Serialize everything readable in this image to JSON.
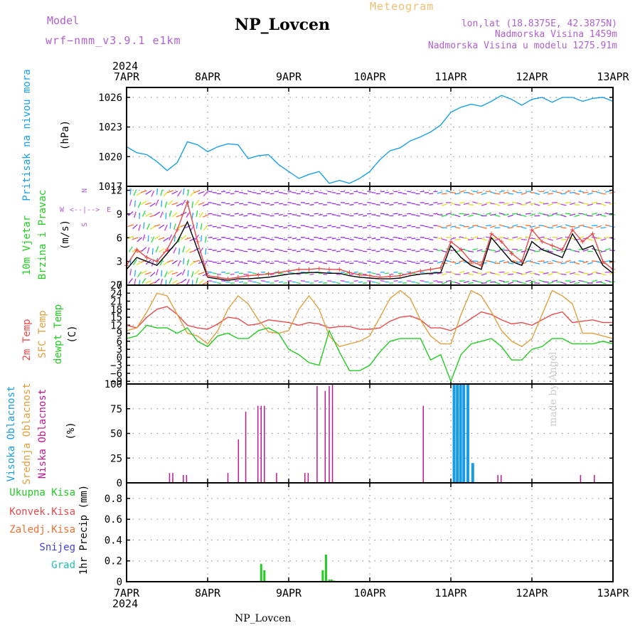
{
  "header": {
    "model_label": "Model",
    "model_value": "wrf−nmm_v3.9.1  e1km",
    "station_title": "NP_Lovcen",
    "product": "Meteogram",
    "coords": "lon,lat (18.8375E, 42.3875N)",
    "altitude": "Nadmorska Visina 1459m",
    "model_altitude": "Nadmorska Visina u modelu 1275.91m",
    "footer_station": "NP_Lovcen",
    "credit": "made by Angel"
  },
  "colors": {
    "pressure": "#1aa0e6",
    "temp2m": "#e84a4a",
    "sfc_temp": "#e0a040",
    "dewpoint": "#22cc22",
    "high_cloud": "#1a9be6",
    "mid_cloud": "#e0a040",
    "low_cloud": "#c01890",
    "total_precip": "#22cc22",
    "wind_speed": "#000000",
    "wind_gust": "#e84a4a",
    "header_magenta": "#b060d0",
    "header_orange": "#f0c070"
  },
  "chart_data": [
    {
      "type": "line",
      "name": "pressure",
      "ylabel_lines": [
        "Pritisak na nivou mora",
        "(hPa)"
      ],
      "x_year": "2024",
      "xticks": [
        "7APR",
        "8APR",
        "9APR",
        "10APR",
        "11APR",
        "12APR",
        "13APR"
      ],
      "yticks": [
        1017,
        1020,
        1023,
        1026
      ],
      "ylim": [
        1017,
        1027
      ],
      "grid": true,
      "days": [
        0,
        0.125,
        0.25,
        0.375,
        0.5,
        0.625,
        0.75,
        0.875,
        1,
        1.125,
        1.25,
        1.375,
        1.5,
        1.625,
        1.75,
        1.875,
        2,
        2.125,
        2.25,
        2.375,
        2.5,
        2.625,
        2.75,
        2.875,
        3,
        3.125,
        3.25,
        3.375,
        3.5,
        3.625,
        3.75,
        3.875,
        4,
        4.125,
        4.25,
        4.375,
        4.5,
        4.625,
        4.75,
        4.875,
        5,
        5.125,
        5.25,
        5.375,
        5.5,
        5.625,
        5.75,
        5.875,
        6
      ],
      "series": [
        {
          "key": "pressure",
          "values": [
            1021,
            1020.4,
            1020.2,
            1019.5,
            1018.6,
            1019.4,
            1021.5,
            1021.2,
            1020.5,
            1021,
            1021.3,
            1021.2,
            1019.8,
            1020.1,
            1020.2,
            1019.2,
            1018.5,
            1017.8,
            1018.2,
            1018.5,
            1017.3,
            1017.6,
            1017.3,
            1017.8,
            1018.5,
            1019.7,
            1020.6,
            1020.9,
            1021.6,
            1022,
            1022.5,
            1023.2,
            1024.5,
            1025,
            1025.3,
            1025.1,
            1025.6,
            1026.2,
            1025.8,
            1025.2,
            1025.8,
            1026,
            1025.5,
            1026,
            1026,
            1025.6,
            1025.9,
            1026,
            1025.6
          ]
        }
      ]
    },
    {
      "type": "line",
      "name": "wind",
      "ylabel_lines": [
        "10m Vjetar",
        "Brzina i Pravac",
        "(m/s)"
      ],
      "compass": {
        "w": "W",
        "e": "E",
        "n": "N",
        "s": "S"
      },
      "yticks": [
        0,
        3,
        6,
        9,
        12
      ],
      "ylim": [
        0,
        12.5
      ],
      "grid": true,
      "days": [
        0,
        0.125,
        0.25,
        0.375,
        0.5,
        0.625,
        0.75,
        0.875,
        1,
        1.125,
        1.25,
        1.375,
        1.5,
        1.625,
        1.75,
        1.875,
        2,
        2.125,
        2.25,
        2.375,
        2.5,
        2.625,
        2.75,
        2.875,
        3,
        3.125,
        3.25,
        3.375,
        3.5,
        3.625,
        3.75,
        3.875,
        4,
        4.125,
        4.25,
        4.375,
        4.5,
        4.625,
        4.75,
        4.875,
        5,
        5.125,
        5.25,
        5.375,
        5.5,
        5.625,
        5.75,
        5.875,
        6
      ],
      "series": [
        {
          "key": "wind_speed",
          "values": [
            2,
            3.5,
            3,
            2.5,
            4,
            5.5,
            8,
            4.5,
            1,
            0.8,
            0.6,
            0.8,
            0.8,
            0.9,
            1,
            1.2,
            1.4,
            1.5,
            1.6,
            1.6,
            1.5,
            1.5,
            1.2,
            1,
            0.9,
            0.8,
            0.8,
            0.9,
            1.2,
            1.4,
            1.5,
            1.6,
            5,
            3.5,
            2.5,
            2,
            6,
            4.5,
            3,
            2.5,
            5.5,
            4.5,
            4,
            3.5,
            6.5,
            4.5,
            5,
            2.5,
            1.5
          ]
        },
        {
          "key": "wind_gust",
          "values": [
            2.5,
            4.5,
            3.5,
            3,
            4.5,
            7,
            10.5,
            5.5,
            1.2,
            1,
            0.8,
            1,
            1.2,
            1.3,
            1.4,
            1.6,
            1.8,
            2,
            2,
            2.1,
            2,
            2,
            1.6,
            1.3,
            1.2,
            1,
            1.1,
            1.2,
            1.5,
            1.8,
            2,
            2.2,
            5.5,
            4.5,
            3,
            2.5,
            6.5,
            5.5,
            4,
            3,
            7,
            5.5,
            5,
            4.5,
            7,
            5.5,
            6.5,
            3,
            2
          ]
        }
      ]
    },
    {
      "type": "line",
      "name": "temperature",
      "ylabel_lines": [
        "2m Temp",
        "SFC Temp",
        "dewpt Temp",
        "(C)"
      ],
      "yticks": [
        -9,
        -6,
        -3,
        0,
        3,
        6,
        9,
        12,
        15,
        18,
        21,
        24,
        27
      ],
      "ylim": [
        -10,
        27
      ],
      "grid": true,
      "days": [
        0,
        0.125,
        0.25,
        0.375,
        0.5,
        0.625,
        0.75,
        0.875,
        1,
        1.125,
        1.25,
        1.375,
        1.5,
        1.625,
        1.75,
        1.875,
        2,
        2.125,
        2.25,
        2.375,
        2.5,
        2.625,
        2.75,
        2.875,
        3,
        3.125,
        3.25,
        3.375,
        3.5,
        3.625,
        3.75,
        3.875,
        4,
        4.125,
        4.25,
        4.375,
        4.5,
        4.625,
        4.75,
        4.875,
        5,
        5.125,
        5.25,
        5.375,
        5.5,
        5.625,
        5.75,
        5.875,
        6
      ],
      "series": [
        {
          "key": "temp2m",
          "values": [
            12,
            11,
            15,
            18,
            19,
            16,
            12,
            11,
            10.5,
            12.5,
            15,
            14.5,
            12,
            12.5,
            14,
            13.5,
            13,
            12,
            13,
            12.5,
            11,
            11.5,
            11.5,
            10.5,
            10.5,
            11,
            13.5,
            15,
            15.5,
            14,
            11,
            11,
            10,
            12,
            14.5,
            17,
            16,
            14,
            12.5,
            13,
            12,
            14,
            16,
            17,
            13,
            13.5,
            14,
            13,
            13
          ]
        },
        {
          "key": "sfc_temp",
          "values": [
            10,
            11,
            17,
            24,
            23,
            16,
            9,
            8,
            5,
            10,
            18,
            23,
            20,
            14,
            9.5,
            9,
            10,
            18,
            23,
            18,
            8,
            4,
            5,
            6,
            8,
            15,
            22,
            25,
            22,
            14,
            8,
            5,
            5,
            16,
            25,
            23,
            17,
            10,
            6,
            4,
            7,
            16,
            25,
            23,
            20,
            9,
            9,
            8,
            7
          ]
        },
        {
          "key": "dewpoint",
          "values": [
            7,
            8,
            12,
            11,
            11,
            9,
            11,
            6,
            4,
            8,
            9,
            7,
            7,
            10,
            11,
            9,
            3,
            1,
            -2,
            -3,
            10,
            2,
            -5,
            -5,
            -3,
            2,
            6,
            7,
            7,
            7,
            -1,
            1,
            -9,
            1,
            5,
            6,
            7,
            4,
            -1,
            -1,
            3,
            4,
            7,
            7,
            5,
            5,
            5,
            6,
            5
          ]
        }
      ]
    },
    {
      "type": "bar",
      "name": "cloud",
      "ylabel_lines": [
        "Visoka Oblacnost",
        "Srednja Oblacnost",
        "Niska Oblacnost",
        "(%)"
      ],
      "yticks": [
        0,
        25,
        50,
        75,
        100
      ],
      "ylim": [
        0,
        100
      ],
      "grid": true,
      "series": [
        {
          "key": "low_cloud",
          "days": [
            0.53,
            0.57,
            0.7,
            0.74,
            1.25,
            1.38,
            1.47,
            1.62,
            1.66,
            1.7,
            1.85,
            2.2,
            2.24,
            2.35,
            2.45,
            2.5,
            2.54,
            3.66,
            4.58,
            4.62,
            5.6,
            5.77
          ],
          "values": [
            10,
            10,
            8,
            8,
            10,
            44,
            72,
            78,
            78,
            78,
            10,
            10,
            10,
            98,
            93,
            98,
            100,
            78,
            8,
            8,
            8,
            8
          ]
        },
        {
          "key": "high_cloud",
          "days": [
            4.04,
            4.08,
            4.12,
            4.16,
            4.21,
            4.27
          ],
          "values": [
            100,
            100,
            100,
            100,
            100,
            20
          ]
        }
      ]
    },
    {
      "type": "bar",
      "name": "precipitation",
      "ylabel_lines": [
        "1hr Precip (mm)"
      ],
      "legend": [
        "Ukupna Kisa",
        "Konvek.Kisa",
        "Zaledj.Kisa",
        "Snijeg",
        "Grad"
      ],
      "yticks": [
        0,
        0.2,
        0.4,
        0.6,
        0.8
      ],
      "ylim": [
        0,
        0.95
      ],
      "grid": true,
      "xticks": [
        "7APR",
        "8APR",
        "9APR",
        "10APR",
        "11APR",
        "12APR",
        "13APR"
      ],
      "x_year": "2024",
      "series": [
        {
          "key": "total_precip",
          "days": [
            1.66,
            1.7,
            2.42,
            2.46,
            2.5,
            2.53,
            2.56
          ],
          "values": [
            0.17,
            0.11,
            0.11,
            0.26,
            0.02,
            0.02,
            0.01
          ]
        }
      ]
    }
  ]
}
